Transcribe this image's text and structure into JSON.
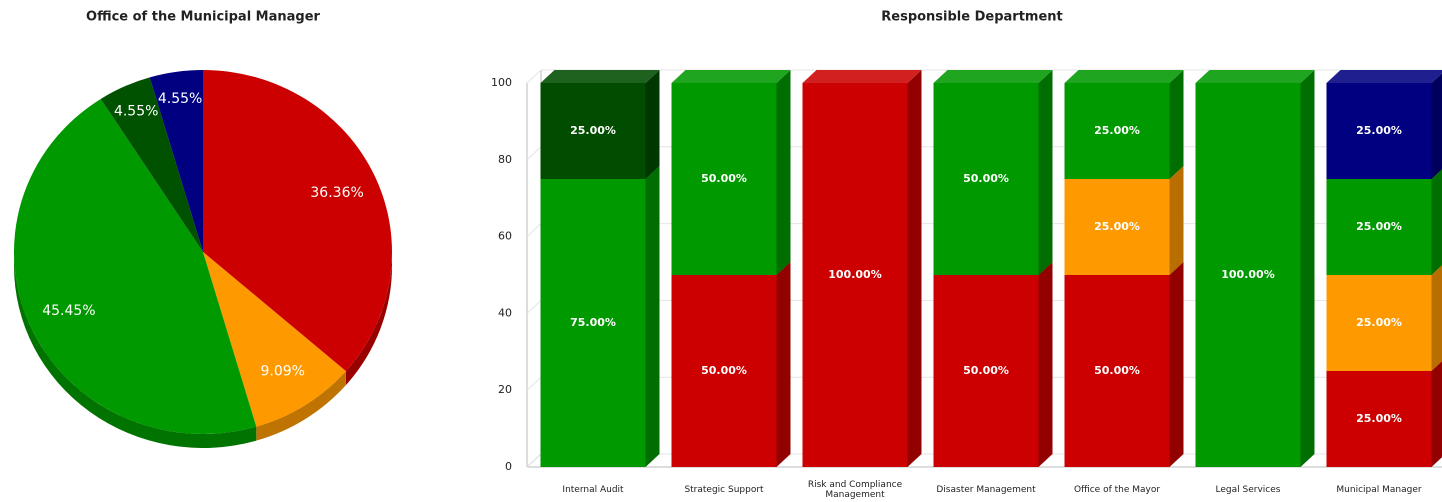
{
  "chart_data": [
    {
      "type": "pie",
      "title": "Office of the Municipal Manager",
      "values": [
        36.36,
        9.09,
        45.45,
        4.55,
        4.55
      ],
      "value_labels": [
        "36.36%",
        "9.09%",
        "45.45%",
        "4.55%",
        "4.55%"
      ],
      "colors": [
        "#cc0000",
        "#ff9900",
        "#009900",
        "#005200",
        "#000080"
      ]
    },
    {
      "type": "bar",
      "stacked": true,
      "title": "Responsible Department",
      "categories": [
        "Internal Audit",
        "Strategic Support",
        "Risk and Compliance Management",
        "Disaster Management",
        "Office of the Mayor",
        "Legal Services",
        "Municipal Manager"
      ],
      "series": [
        {
          "color": "#cc0000",
          "values": [
            null,
            50,
            100,
            50,
            50,
            null,
            25
          ],
          "value_labels": [
            null,
            "50.00%",
            "100.00%",
            "50.00%",
            "50.00%",
            null,
            "25.00%"
          ]
        },
        {
          "color": "#ff9900",
          "values": [
            null,
            null,
            null,
            null,
            25,
            null,
            25
          ],
          "value_labels": [
            null,
            null,
            null,
            null,
            "25.00%",
            null,
            "25.00%"
          ]
        },
        {
          "color": "#009900",
          "values": [
            75,
            50,
            null,
            50,
            25,
            100,
            25
          ],
          "value_labels": [
            "75.00%",
            "50.00%",
            null,
            "50.00%",
            "25.00%",
            "100.00%",
            "25.00%"
          ]
        },
        {
          "color": "#004d00",
          "values": [
            25,
            null,
            null,
            null,
            null,
            null,
            null
          ],
          "value_labels": [
            "25.00%",
            null,
            null,
            null,
            null,
            null,
            null
          ]
        },
        {
          "color": "#000080",
          "values": [
            null,
            null,
            null,
            null,
            null,
            null,
            25
          ],
          "value_labels": [
            null,
            null,
            null,
            null,
            null,
            null,
            "25.00%"
          ]
        }
      ],
      "ylim": [
        0,
        100
      ],
      "yticks": [
        0,
        20,
        40,
        60,
        80,
        100
      ],
      "grid": true
    }
  ]
}
